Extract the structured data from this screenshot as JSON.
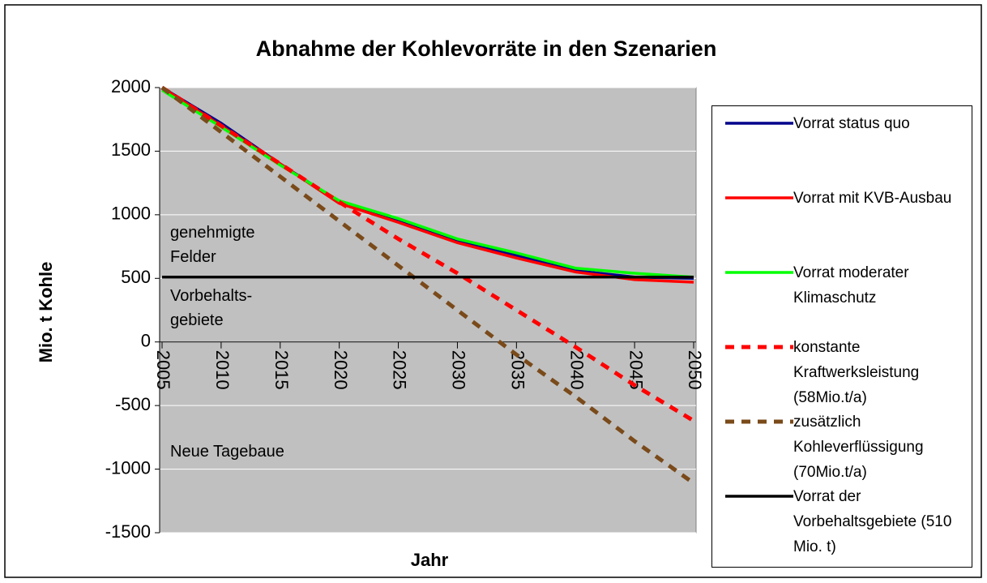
{
  "chart_data": {
    "type": "line",
    "title": "Abnahme der Kohlevorräte in den Szenarien",
    "x_label": "Jahr",
    "y_label": "Mio. t Kohle",
    "x": [
      2005,
      2010,
      2015,
      2020,
      2025,
      2030,
      2035,
      2040,
      2045,
      2050
    ],
    "series": [
      {
        "name": "Vorrat status quo",
        "color": "#00008b",
        "dash": false,
        "values": [
          2000,
          1720,
          1400,
          1100,
          960,
          800,
          680,
          560,
          510,
          500
        ]
      },
      {
        "name": "Vorrat mit KVB-Ausbau",
        "color": "#ff0000",
        "dash": false,
        "values": [
          2000,
          1700,
          1400,
          1090,
          940,
          780,
          660,
          550,
          490,
          470
        ]
      },
      {
        "name": "Vorrat moderater Klimaschutz",
        "color": "#00ff00",
        "dash": false,
        "values": [
          1980,
          1690,
          1390,
          1110,
          970,
          810,
          700,
          580,
          540,
          510
        ]
      },
      {
        "name": "konstante Kraftwerksleistung (58Mio.t/a)",
        "color": "#ff0000",
        "dash": true,
        "values": [
          2000,
          1700,
          1400,
          1100,
          810,
          540,
          250,
          -40,
          -340,
          -620
        ]
      },
      {
        "name": "zusätzlich Kohleverflüssigung (70Mio.t/a)",
        "color": "#7a4a1a",
        "dash": true,
        "values": [
          2000,
          1650,
          1300,
          950,
          600,
          250,
          -100,
          -430,
          -780,
          -1110
        ]
      },
      {
        "name": "Vorrat der Vorbehaltsgebiete (510 Mio. t)",
        "color": "#000000",
        "dash": false,
        "values": [
          510,
          510,
          510,
          510,
          510,
          510,
          510,
          510,
          510,
          510
        ]
      }
    ],
    "annotations": [
      "genehmigte Felder",
      "Vorbehalts-gebiete",
      "Neue Tagebaue"
    ],
    "xlim": [
      2005,
      2050
    ],
    "xticks": [
      2005,
      2010,
      2015,
      2020,
      2025,
      2030,
      2035,
      2040,
      2045,
      2050
    ],
    "ylim": [
      -1500,
      2000
    ],
    "yticks": [
      -1500,
      -1000,
      -500,
      0,
      500,
      1000,
      1500,
      2000
    ],
    "grid": true,
    "legend": "right"
  }
}
